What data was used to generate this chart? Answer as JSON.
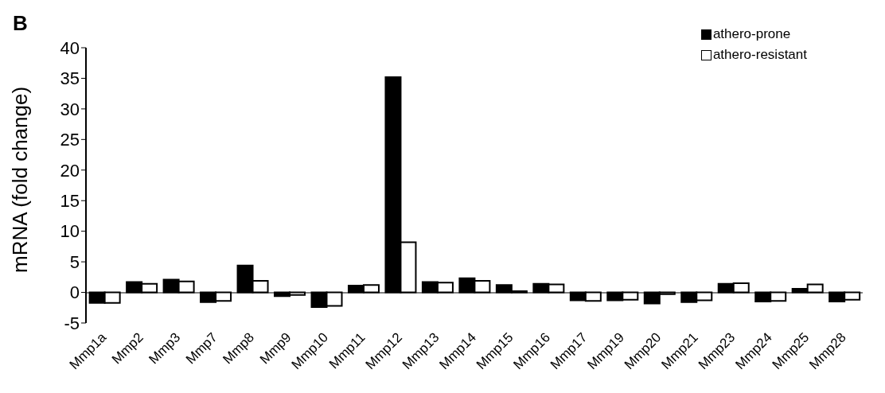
{
  "chart_data": {
    "type": "bar",
    "ylabel": "mRNA (fold change)",
    "annotations": [
      "B"
    ],
    "categories": [
      "Mmp1a",
      "Mmp2",
      "Mmp3",
      "Mmp7",
      "Mmp8",
      "Mmp9",
      "Mmp10",
      "Mmp11",
      "Mmp12",
      "Mmp13",
      "Mmp14",
      "Mmp15",
      "Mmp16",
      "Mmp17",
      "Mmp19",
      "Mmp20",
      "Mmp21",
      "Mmp23",
      "Mmp24",
      "Mmp25",
      "Mmp28"
    ],
    "series": [
      {
        "name": "athero-prone",
        "color": "#000000",
        "values": [
          -1.7,
          1.7,
          2.1,
          -1.6,
          4.4,
          -0.6,
          -2.4,
          1.1,
          35.2,
          1.7,
          2.3,
          1.2,
          1.4,
          -1.3,
          -1.3,
          -1.8,
          -1.6,
          1.4,
          -1.5,
          0.6,
          -1.5
        ]
      },
      {
        "name": "athero-resistant",
        "color": "#ffffff",
        "values": [
          -1.7,
          1.4,
          1.8,
          -1.4,
          1.9,
          -0.4,
          -2.2,
          1.2,
          8.2,
          1.6,
          1.9,
          0.2,
          1.3,
          -1.4,
          -1.2,
          -0.3,
          -1.3,
          1.5,
          -1.4,
          1.3,
          -1.2
        ]
      }
    ],
    "ylim": [
      -5,
      40
    ],
    "yticks": [
      -5,
      0,
      5,
      10,
      15,
      20,
      25,
      30,
      35,
      40
    ],
    "grid": false,
    "legend": "top right"
  }
}
